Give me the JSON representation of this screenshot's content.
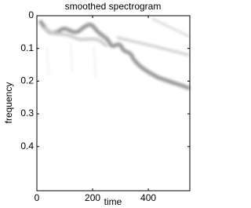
{
  "chart_data": {
    "type": "image",
    "title": "smoothed spectrogram",
    "x_label": "time",
    "y_label": "frequency",
    "xlim": [
      0,
      549
    ],
    "xticks": [
      0,
      200,
      400
    ],
    "ylim": [
      0,
      0.535
    ],
    "yticks": [
      0,
      0.1,
      0.2,
      0.3,
      0.4
    ],
    "y_inverted": true
  }
}
